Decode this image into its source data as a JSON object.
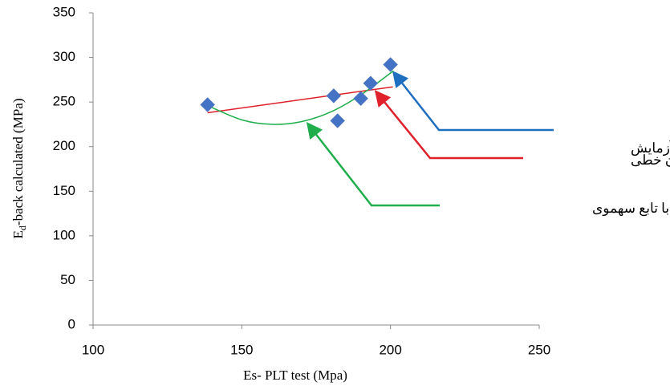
{
  "chart_data": {
    "type": "scatter",
    "xlabel": "Es- PLT test (Mpa)",
    "ylabel": {
      "main": "E",
      "subscript": "d",
      "rest": "-back calculated (MPa)"
    },
    "xlim": [
      100,
      250
    ],
    "xticks": [
      100,
      150,
      200,
      250
    ],
    "ylim": [
      0,
      350
    ],
    "yticks": [
      0,
      50,
      100,
      150,
      200,
      250,
      300,
      350
    ],
    "grid": false,
    "series": [
      {
        "name": "داده های آزمایش",
        "color": "#4472c4",
        "arrow_color": "#1f6fc0",
        "marker": "diamond",
        "x": [
          138.5,
          180.9,
          182.2,
          190,
          193.3,
          200
        ],
        "values": [
          247,
          257,
          229,
          254,
          271,
          292
        ]
      },
      {
        "name": "رگرسیون خطی",
        "color": "#e0202a",
        "marker": "none",
        "x": [
          138.5,
          200.8
        ],
        "values": [
          238,
          267
        ]
      },
      {
        "name": "رگرسیون با تابع سهموی",
        "color": "#1fae4b",
        "marker": "none",
        "x": [
          138.5,
          150,
          160,
          170,
          180,
          190,
          201
        ],
        "values": [
          246,
          230,
          225,
          228,
          239,
          258,
          285
        ]
      }
    ]
  }
}
